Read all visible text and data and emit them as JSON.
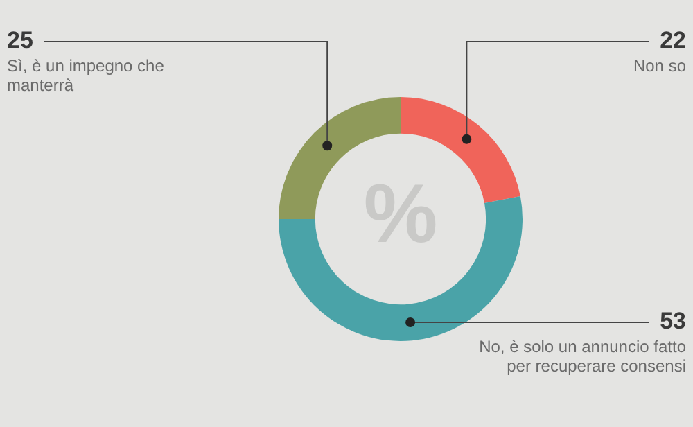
{
  "chart_data": {
    "type": "donut",
    "categories": [
      "Non so",
      "No, è solo un annuncio fatto per recuperare consensi",
      "Sì, è un impegno che manterrà"
    ],
    "values": [
      22,
      53,
      25
    ],
    "colors": [
      "#f0645a",
      "#4aa3a8",
      "#8f9a5a"
    ],
    "data_labels": true,
    "legend": false,
    "annotations": [
      "%"
    ]
  }
}
